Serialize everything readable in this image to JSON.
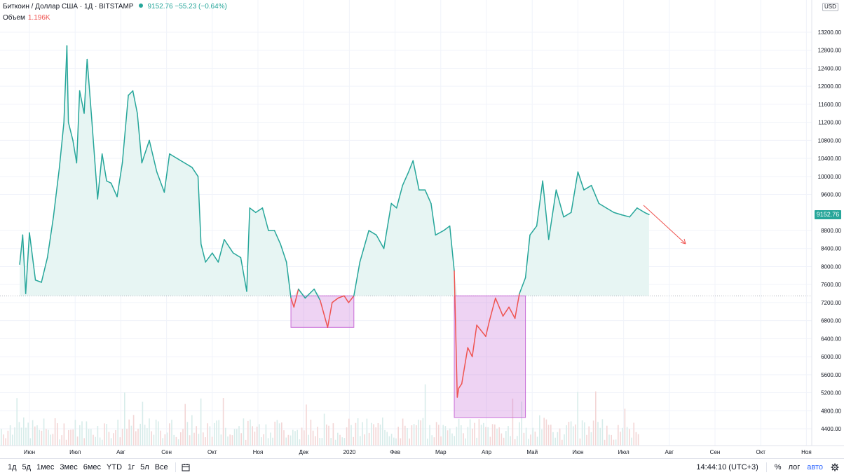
{
  "header": {
    "symbol": "Биткоин / Доллар США · 1Д · BITSTAMP",
    "price": "9152.76",
    "change": "−55.23 (−0.64%)",
    "volume_label": "Объем",
    "volume_value": "1.196K"
  },
  "price_axis": {
    "currency": "USD",
    "current_price_label": "9152.76",
    "ticks": [
      "13200.00",
      "12800.00",
      "12400.00",
      "12000.00",
      "11600.00",
      "11200.00",
      "10800.00",
      "10400.00",
      "10000.00",
      "9600.00",
      "8800.00",
      "8400.00",
      "8000.00",
      "7600.00",
      "7200.00",
      "6800.00",
      "6400.00",
      "6000.00",
      "5600.00",
      "5200.00",
      "4800.00",
      "4400.00"
    ]
  },
  "time_axis": {
    "labels": [
      "Июн",
      "Июл",
      "Авг",
      "Сен",
      "Окт",
      "Ноя",
      "Дек",
      "2020",
      "Фев",
      "Мар",
      "Апр",
      "Май",
      "Июн",
      "Июл",
      "Авг",
      "Сен",
      "Окт",
      "Ноя"
    ]
  },
  "bottom_bar": {
    "timeframes": [
      "1д",
      "5д",
      "1мес",
      "3мес",
      "6мес",
      "YTD",
      "1г",
      "5л",
      "Все"
    ],
    "clock": "14:44:10 (UTC+3)",
    "percent": "%",
    "log": "лог",
    "auto": "авто"
  },
  "colors": {
    "line_up": "#26a69a",
    "line_down": "#ef5350",
    "highlight_box": "#c86dd7",
    "arrow": "#ef5350"
  },
  "chart_data": {
    "type": "area",
    "title": "Биткоин / Доллар США · 1Д · BITSTAMP",
    "baseline": 7350,
    "ylim": [
      4200,
      13400
    ],
    "x": [
      "Май",
      "Июн",
      "Июл",
      "Авг",
      "Сен",
      "Окт",
      "Ноя",
      "Дек",
      "2020",
      "Фев",
      "Мар",
      "Апр",
      "Май",
      "Июн",
      "Июл"
    ],
    "points": [
      [
        "Май-25",
        8050
      ],
      [
        "Май-27",
        8700
      ],
      [
        "Май-29",
        7400
      ],
      [
        "Июн-01",
        8750
      ],
      [
        "Июн-05",
        7700
      ],
      [
        "Июн-09",
        7650
      ],
      [
        "Июн-13",
        8200
      ],
      [
        "Июн-17",
        9100
      ],
      [
        "Июн-21",
        10200
      ],
      [
        "Июн-24",
        11200
      ],
      [
        "Июн-26",
        12900
      ],
      [
        "Июн-27",
        11200
      ],
      [
        "Июн-30",
        10800
      ],
      [
        "Июл-02",
        10300
      ],
      [
        "Июл-04",
        11900
      ],
      [
        "Июл-07",
        11400
      ],
      [
        "Июл-09",
        12600
      ],
      [
        "Июл-12",
        11300
      ],
      [
        "Июл-16",
        9500
      ],
      [
        "Июл-19",
        10500
      ],
      [
        "Июл-22",
        9900
      ],
      [
        "Июл-25",
        9850
      ],
      [
        "Июл-29",
        9550
      ],
      [
        "Авг-02",
        10300
      ],
      [
        "Авг-06",
        11800
      ],
      [
        "Авг-09",
        11900
      ],
      [
        "Авг-12",
        11400
      ],
      [
        "Авг-15",
        10300
      ],
      [
        "Авг-20",
        10800
      ],
      [
        "Авг-25",
        10100
      ],
      [
        "Авг-30",
        9650
      ],
      [
        "Сен-03",
        10500
      ],
      [
        "Сен-08",
        10400
      ],
      [
        "Сен-13",
        10300
      ],
      [
        "Сен-18",
        10200
      ],
      [
        "Сен-22",
        10000
      ],
      [
        "Сен-24",
        8500
      ],
      [
        "Сен-27",
        8100
      ],
      [
        "Окт-01",
        8300
      ],
      [
        "Окт-05",
        8100
      ],
      [
        "Окт-09",
        8600
      ],
      [
        "Окт-15",
        8300
      ],
      [
        "Окт-20",
        8200
      ],
      [
        "Окт-24",
        7450
      ],
      [
        "Окт-26",
        9300
      ],
      [
        "Окт-30",
        9200
      ],
      [
        "Ноя-04",
        9300
      ],
      [
        "Ноя-08",
        8800
      ],
      [
        "Ноя-12",
        8800
      ],
      [
        "Ноя-16",
        8500
      ],
      [
        "Ноя-20",
        8100
      ],
      [
        "Ноя-23",
        7300
      ],
      [
        "Ноя-25",
        7100
      ],
      [
        "Ноя-28",
        7500
      ],
      [
        "Дек-02",
        7300
      ],
      [
        "Дек-08",
        7500
      ],
      [
        "Дек-12",
        7250
      ],
      [
        "Дек-17",
        6650
      ],
      [
        "Дек-20",
        7200
      ],
      [
        "Дек-24",
        7300
      ],
      [
        "Дек-28",
        7350
      ],
      [
        "Дек-31",
        7200
      ],
      [
        "Янв-04",
        7350
      ],
      [
        "Янв-08",
        8100
      ],
      [
        "Янв-14",
        8800
      ],
      [
        "Янв-19",
        8700
      ],
      [
        "Янв-24",
        8400
      ],
      [
        "Янв-29",
        9400
      ],
      [
        "Фев-02",
        9300
      ],
      [
        "Фев-06",
        9800
      ],
      [
        "Фев-10",
        10100
      ],
      [
        "Фев-13",
        10350
      ],
      [
        "Фев-17",
        9700
      ],
      [
        "Фев-21",
        9700
      ],
      [
        "Фев-25",
        9400
      ],
      [
        "Фев-28",
        8700
      ],
      [
        "Мар-03",
        8800
      ],
      [
        "Мар-07",
        8900
      ],
      [
        "Мар-10",
        7900
      ],
      [
        "Мар-12",
        5100
      ],
      [
        "Мар-13",
        5300
      ],
      [
        "Мар-15",
        5400
      ],
      [
        "Мар-19",
        6200
      ],
      [
        "Мар-22",
        6000
      ],
      [
        "Мар-25",
        6700
      ],
      [
        "Мар-31",
        6450
      ],
      [
        "Апр-03",
        6800
      ],
      [
        "Апр-07",
        7300
      ],
      [
        "Апр-12",
        6900
      ],
      [
        "Апр-16",
        7100
      ],
      [
        "Апр-20",
        6850
      ],
      [
        "Апр-23",
        7400
      ],
      [
        "Апр-27",
        7750
      ],
      [
        "Апр-30",
        8700
      ],
      [
        "Май-04",
        8900
      ],
      [
        "Май-08",
        9900
      ],
      [
        "Май-12",
        8600
      ],
      [
        "Май-17",
        9700
      ],
      [
        "Май-22",
        9100
      ],
      [
        "Май-27",
        9200
      ],
      [
        "Июн-01",
        10100
      ],
      [
        "Июн-05",
        9700
      ],
      [
        "Июн-10",
        9800
      ],
      [
        "Июн-15",
        9400
      ],
      [
        "Июн-20",
        9300
      ],
      [
        "Июн-25",
        9200
      ],
      [
        "Июн-30",
        9150
      ],
      [
        "Июл-05",
        9100
      ],
      [
        "Июл-10",
        9300
      ],
      [
        "Июл-15",
        9200
      ],
      [
        "Июл-18",
        9152
      ]
    ],
    "volume": "relative bars along bottom, red/green tinted",
    "annotations": [
      {
        "kind": "rectangle",
        "color": "#c86dd7",
        "from": "Ноя-23",
        "to": "Янв-04",
        "y_range": [
          6650,
          7350
        ]
      },
      {
        "kind": "rectangle",
        "color": "#c86dd7",
        "from": "Мар-10",
        "to": "Апр-27",
        "y_range": [
          4650,
          7350
        ]
      },
      {
        "kind": "arrow",
        "color": "#ef5350",
        "direction": "down-right",
        "from": "Июл-18",
        "to": "Авг-20"
      }
    ]
  }
}
